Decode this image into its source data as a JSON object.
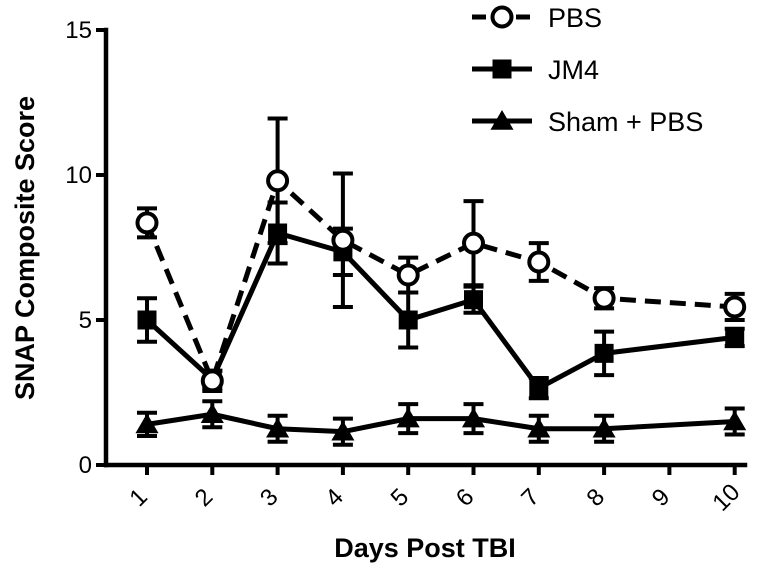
{
  "chart_data": {
    "type": "line",
    "title": "",
    "xlabel": "Days Post TBI",
    "ylabel": "SNAP Composite Score",
    "ylim": [
      0,
      15
    ],
    "yticks": [
      0,
      5,
      10,
      15
    ],
    "categories": [
      "1",
      "2",
      "3",
      "4",
      "5",
      "6",
      "7",
      "8",
      "9",
      "10"
    ],
    "legend_position": "top-right",
    "series": [
      {
        "name": "PBS",
        "marker": "open-circle",
        "line": "dashed",
        "x": [
          1,
          2,
          3,
          4,
          5,
          6,
          7,
          8,
          10
        ],
        "values": [
          8.35,
          2.9,
          9.8,
          7.75,
          6.55,
          7.65,
          7.0,
          5.75,
          5.45
        ],
        "errors": [
          0.5,
          0.35,
          2.15,
          2.3,
          0.6,
          1.45,
          0.65,
          0.35,
          0.45
        ]
      },
      {
        "name": "JM4",
        "marker": "filled-square",
        "line": "solid",
        "x": [
          1,
          2,
          3,
          4,
          5,
          6,
          7,
          8,
          10
        ],
        "values": [
          5.0,
          2.95,
          8.0,
          7.35,
          5.0,
          5.7,
          2.65,
          3.85,
          4.4
        ],
        "errors": [
          0.75,
          0.3,
          1.05,
          0.8,
          0.95,
          0.45,
          0.35,
          0.75,
          0.3
        ]
      },
      {
        "name": "Sham + PBS",
        "marker": "filled-triangle",
        "line": "solid",
        "x": [
          1,
          2,
          3,
          4,
          5,
          6,
          7,
          8,
          10
        ],
        "values": [
          1.4,
          1.75,
          1.25,
          1.15,
          1.6,
          1.6,
          1.25,
          1.25,
          1.5
        ],
        "errors": [
          0.4,
          0.45,
          0.45,
          0.45,
          0.5,
          0.5,
          0.45,
          0.45,
          0.45
        ]
      }
    ]
  }
}
